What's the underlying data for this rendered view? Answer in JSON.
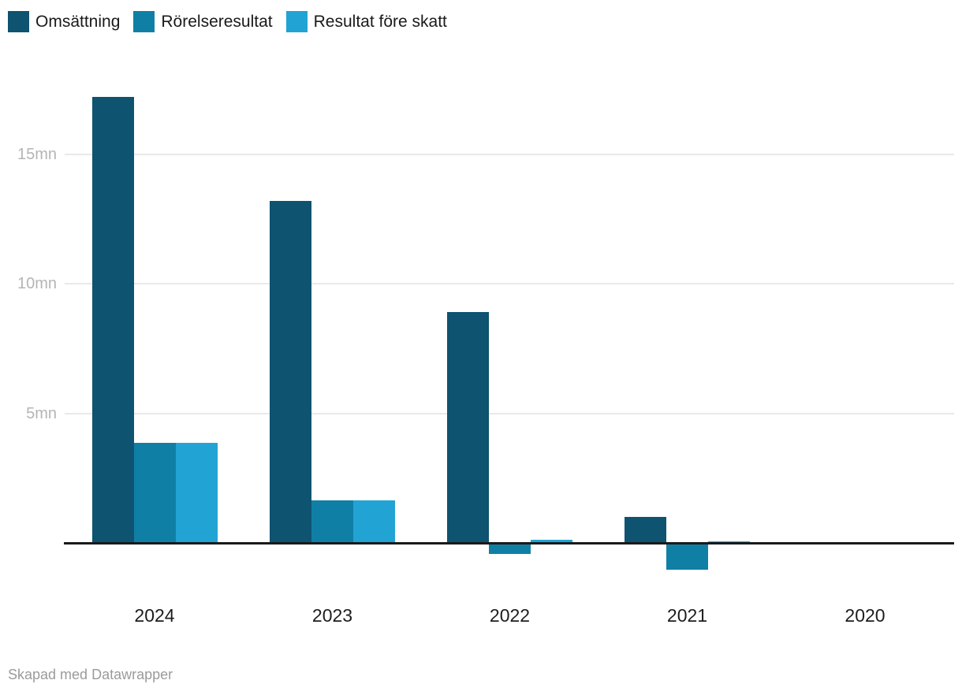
{
  "footer": {
    "credit": "Skapad med Datawrapper"
  },
  "chart_data": {
    "type": "bar",
    "title": "",
    "categories": [
      "2024",
      "2023",
      "2022",
      "2021",
      "2020"
    ],
    "series": [
      {
        "name": "Omsättning",
        "color": "#0e5370",
        "values": [
          17.2,
          13.2,
          8.9,
          1.0,
          0
        ]
      },
      {
        "name": "Rörelseresultat",
        "color": "#107fa6",
        "values": [
          3.85,
          1.65,
          -0.4,
          -1.0,
          0
        ]
      },
      {
        "name": "Resultat före skatt",
        "color": "#21a3d4",
        "values": [
          3.85,
          1.65,
          0.12,
          0.06,
          0
        ]
      }
    ],
    "unit": "mn",
    "y_ticks": [
      {
        "value": 5,
        "label": "5mn"
      },
      {
        "value": 10,
        "label": "10mn"
      },
      {
        "value": 15,
        "label": "15mn"
      }
    ],
    "ylim": [
      -1.2,
      17.5
    ],
    "xlabel": "",
    "ylabel": "",
    "grid": "horizontal",
    "legend_position": "top-left",
    "baseline": 0
  }
}
